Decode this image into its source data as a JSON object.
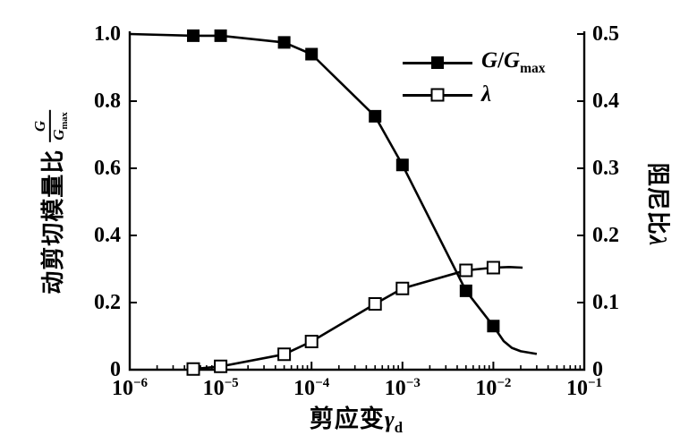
{
  "figure": {
    "background_color": "#ffffff",
    "ink_color": "#000000"
  },
  "chart_data": {
    "type": "line",
    "x_scale": "log",
    "grid": false,
    "x_axis": {
      "label_text": "剪应变",
      "label_symbol": "γ",
      "label_symbol_sub": "d",
      "tick_base": "10",
      "tick_exps": [
        "-6",
        "-5",
        "-4",
        "-3",
        "-2",
        "-1"
      ],
      "range": [
        1e-06,
        0.1
      ]
    },
    "left_axis": {
      "title_prefix": "动剪切模量比",
      "frac_num": "G",
      "frac_den": "G",
      "frac_den_sub": "max",
      "ticks": [
        "1.0",
        "0.8",
        "0.6",
        "0.4",
        "0.2",
        "0"
      ],
      "lim": [
        0,
        1.0
      ]
    },
    "right_axis": {
      "title": "阻尼比",
      "title_symbol": "λ",
      "ticks": [
        "0.5",
        "0.4",
        "0.3",
        "0.2",
        "0.1",
        "0"
      ],
      "lim": [
        0,
        0.5
      ]
    },
    "legend": {
      "position": "top-right-inside",
      "items": [
        {
          "marker": "filled-square",
          "text_italic_1": "G",
          "text_slash": "/",
          "text_italic_2": "G",
          "text_sub": "max"
        },
        {
          "marker": "open-square",
          "text_italic_1": "λ",
          "text_slash": "",
          "text_italic_2": "",
          "text_sub": ""
        }
      ]
    },
    "series": [
      {
        "name": "G/Gmax",
        "axis": "left",
        "marker": "filled-square",
        "points": [
          [
            5e-06,
            0.995
          ],
          [
            1e-05,
            0.995
          ],
          [
            5e-05,
            0.975
          ],
          [
            0.0001,
            0.94
          ],
          [
            0.0005,
            0.755
          ],
          [
            0.001,
            0.61
          ],
          [
            0.005,
            0.235
          ],
          [
            0.01,
            0.13
          ]
        ],
        "line_pre": [
          [
            1e-06,
            1.0
          ]
        ],
        "line_post": [
          [
            0.013,
            0.085
          ],
          [
            0.016,
            0.065
          ],
          [
            0.02,
            0.055
          ],
          [
            0.03,
            0.047
          ]
        ]
      },
      {
        "name": "λ",
        "axis": "right",
        "marker": "open-square",
        "points": [
          [
            5e-06,
            0.001
          ],
          [
            1e-05,
            0.005
          ],
          [
            5e-05,
            0.023
          ],
          [
            0.0001,
            0.042
          ],
          [
            0.0005,
            0.098
          ],
          [
            0.001,
            0.121
          ],
          [
            0.005,
            0.148
          ],
          [
            0.01,
            0.152
          ]
        ],
        "line_pre": [],
        "line_post": [
          [
            0.015,
            0.153
          ],
          [
            0.021,
            0.152
          ]
        ]
      }
    ]
  }
}
